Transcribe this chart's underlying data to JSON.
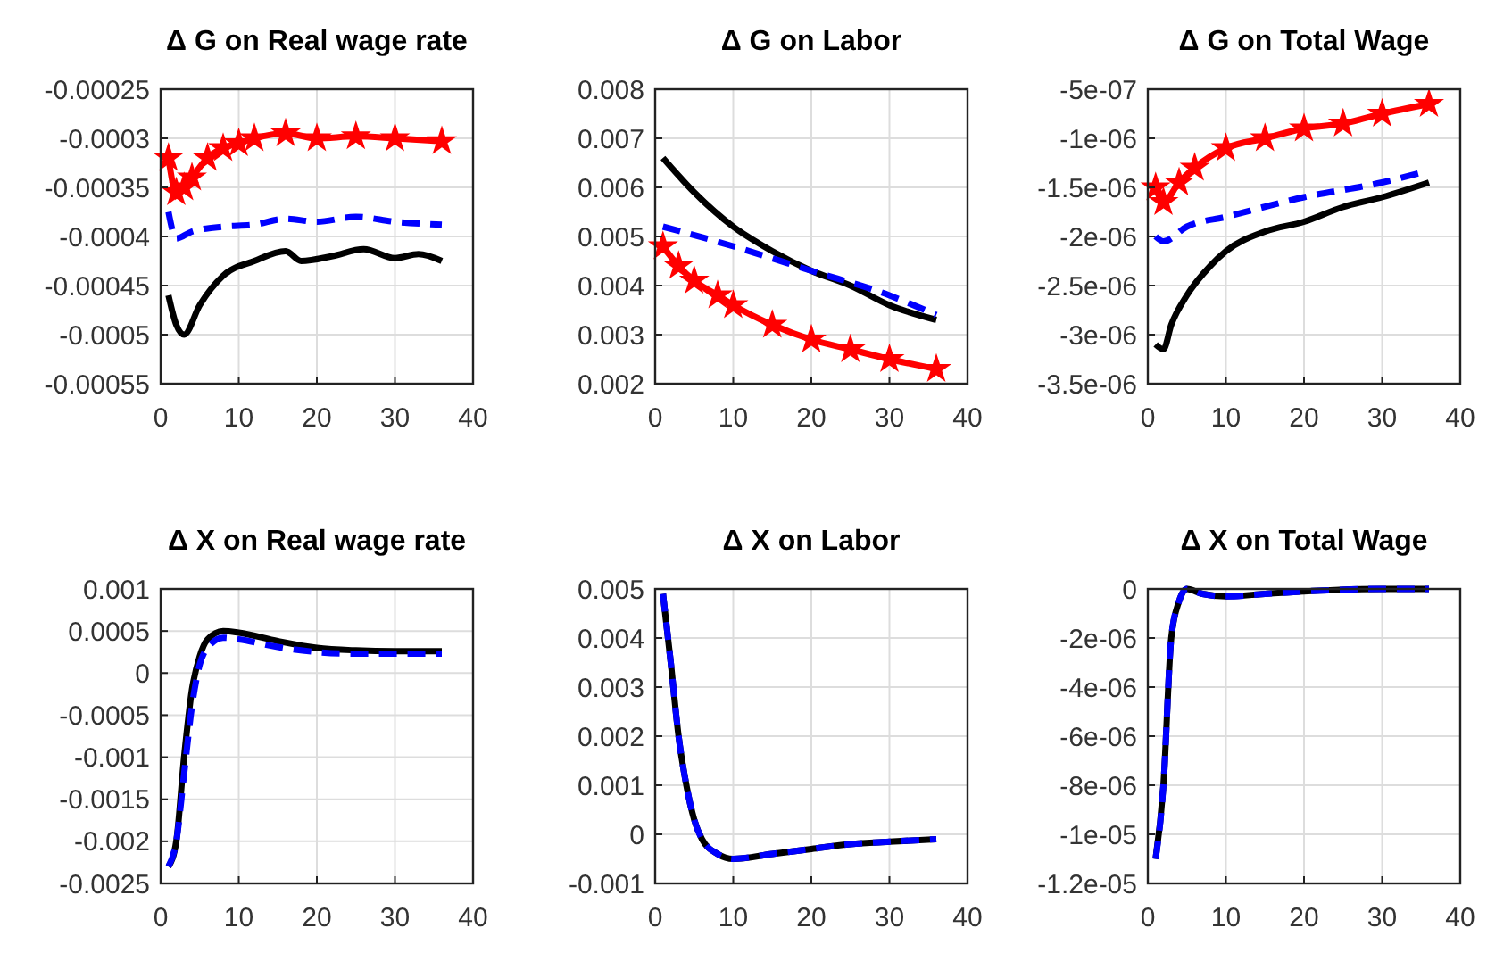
{
  "chart_data": [
    {
      "type": "line",
      "title": "Δ G on Real wage rate",
      "xlim": [
        0,
        40
      ],
      "xticks": [
        0,
        10,
        20,
        30,
        40
      ],
      "ylim": [
        -0.00055,
        -0.00025
      ],
      "yticks": [
        -0.00055,
        -0.0005,
        -0.00045,
        -0.0004,
        -0.00035,
        -0.0003,
        -0.00025
      ],
      "grid": true,
      "series": [
        {
          "color": "#ff0000",
          "marker": "star",
          "line_style": "solid",
          "x": [
            1,
            2,
            3,
            4,
            6,
            8,
            10,
            12,
            16,
            20,
            25,
            30,
            36
          ],
          "values": [
            -0.00032,
            -0.000355,
            -0.00035,
            -0.00034,
            -0.00032,
            -0.00031,
            -0.000305,
            -0.0003,
            -0.000295,
            -0.0003,
            -0.000298,
            -0.0003,
            -0.000303
          ]
        },
        {
          "color": "#0000ff",
          "marker": "none",
          "line_style": "dashed",
          "x": [
            1,
            2,
            4,
            8,
            12,
            16,
            20,
            25,
            30,
            36
          ],
          "values": [
            -0.000375,
            -0.000402,
            -0.000395,
            -0.00039,
            -0.000388,
            -0.000382,
            -0.000385,
            -0.00038,
            -0.000385,
            -0.000388
          ]
        },
        {
          "color": "#000000",
          "marker": "none",
          "line_style": "solid",
          "x": [
            1,
            2,
            3,
            5,
            8,
            12,
            16,
            18,
            22,
            26,
            30,
            33,
            36
          ],
          "values": [
            -0.00046,
            -0.00049,
            -0.0005,
            -0.00047,
            -0.00044,
            -0.000425,
            -0.000415,
            -0.000425,
            -0.00042,
            -0.000413,
            -0.000422,
            -0.000418,
            -0.000425
          ]
        }
      ]
    },
    {
      "type": "line",
      "title": "Δ G on Labor",
      "xlim": [
        0,
        40
      ],
      "xticks": [
        0,
        10,
        20,
        30,
        40
      ],
      "ylim": [
        0.002,
        0.008
      ],
      "yticks": [
        0.002,
        0.003,
        0.004,
        0.005,
        0.006,
        0.007,
        0.008
      ],
      "grid": true,
      "series": [
        {
          "color": "#000000",
          "marker": "none",
          "line_style": "solid",
          "x": [
            1,
            5,
            10,
            15,
            20,
            25,
            30,
            36
          ],
          "values": [
            0.0066,
            0.0059,
            0.0052,
            0.0047,
            0.0043,
            0.004,
            0.0036,
            0.0033
          ]
        },
        {
          "color": "#0000ff",
          "marker": "none",
          "line_style": "dashed",
          "x": [
            1,
            10,
            20,
            30,
            36
          ],
          "values": [
            0.0052,
            0.0048,
            0.0043,
            0.0038,
            0.0034
          ]
        },
        {
          "color": "#ff0000",
          "marker": "star",
          "line_style": "solid",
          "x": [
            1,
            3,
            5,
            8,
            10,
            15,
            20,
            25,
            30,
            36
          ],
          "values": [
            0.0048,
            0.0044,
            0.0041,
            0.0038,
            0.0036,
            0.0032,
            0.0029,
            0.0027,
            0.0025,
            0.0023
          ]
        }
      ]
    },
    {
      "type": "line",
      "title": "Δ G on Total Wage",
      "xlim": [
        0,
        40
      ],
      "xticks": [
        0,
        10,
        20,
        30,
        40
      ],
      "ylim": [
        -3.5e-06,
        -5e-07
      ],
      "yticks": [
        {
          "value": -3.5e-06,
          "label": "-3.5e-06"
        },
        {
          "value": -3e-06,
          "label": "-3e-06"
        },
        {
          "value": -2.5e-06,
          "label": "-2.5e-06"
        },
        {
          "value": -2e-06,
          "label": "-2e-06"
        },
        {
          "value": -1.5e-06,
          "label": "-1.5e-06"
        },
        {
          "value": -1e-06,
          "label": "-1e-06"
        },
        {
          "value": -5e-07,
          "label": "-5e-07"
        }
      ],
      "grid": true,
      "series": [
        {
          "color": "#ff0000",
          "marker": "star",
          "line_style": "solid",
          "x": [
            1,
            2,
            4,
            6,
            10,
            15,
            20,
            25,
            30,
            36
          ],
          "values": [
            -1.5e-06,
            -1.65e-06,
            -1.45e-06,
            -1.3e-06,
            -1.1e-06,
            -1e-06,
            -9e-07,
            -8.5e-07,
            -7.5e-07,
            -6.5e-07
          ]
        },
        {
          "color": "#0000ff",
          "marker": "none",
          "line_style": "dashed",
          "x": [
            1,
            2,
            5,
            10,
            20,
            30,
            35
          ],
          "values": [
            -2e-06,
            -2.05e-06,
            -1.9e-06,
            -1.8e-06,
            -1.6e-06,
            -1.45e-06,
            -1.35e-06
          ]
        },
        {
          "color": "#000000",
          "marker": "none",
          "line_style": "solid",
          "x": [
            1,
            2,
            3,
            5,
            8,
            10,
            15,
            20,
            25,
            30,
            36
          ],
          "values": [
            -3.1e-06,
            -3.15e-06,
            -2.9e-06,
            -2.6e-06,
            -2.3e-06,
            -2.15e-06,
            -1.95e-06,
            -1.85e-06,
            -1.7e-06,
            -1.6e-06,
            -1.45e-06
          ]
        }
      ]
    },
    {
      "type": "line",
      "title": "Δ X on Real wage rate",
      "xlim": [
        0,
        40
      ],
      "xticks": [
        0,
        10,
        20,
        30,
        40
      ],
      "ylim": [
        -0.0025,
        0.001
      ],
      "yticks": [
        -0.0025,
        -0.002,
        -0.0015,
        -0.001,
        -0.0005,
        0,
        0.0005,
        0.001
      ],
      "grid": true,
      "series": [
        {
          "color": "#000000",
          "marker": "none",
          "line_style": "solid",
          "x": [
            1,
            2,
            3,
            4,
            5,
            6,
            8,
            10,
            15,
            20,
            25,
            30,
            36
          ],
          "values": [
            -0.0023,
            -0.002,
            -0.001,
            -0.0002,
            0.0002,
            0.0004,
            0.0005,
            0.00048,
            0.00038,
            0.0003,
            0.00027,
            0.00026,
            0.00026
          ]
        },
        {
          "color": "#0000ff",
          "marker": "none",
          "line_style": "dashed",
          "x": [
            1,
            2,
            3,
            4,
            5,
            6,
            8,
            10,
            15,
            20,
            25,
            30,
            36
          ],
          "values": [
            -0.0023,
            -0.002,
            -0.0012,
            -0.0004,
            0.0001,
            0.0003,
            0.00042,
            0.0004,
            0.00031,
            0.00025,
            0.00023,
            0.00023,
            0.00023
          ]
        }
      ]
    },
    {
      "type": "line",
      "title": "Δ X on Labor",
      "xlim": [
        0,
        40
      ],
      "xticks": [
        0,
        10,
        20,
        30,
        40
      ],
      "ylim": [
        -0.001,
        0.005
      ],
      "yticks": [
        -0.001,
        0,
        0.001,
        0.002,
        0.003,
        0.004,
        0.005
      ],
      "grid": true,
      "series": [
        {
          "color": "#000000",
          "marker": "none",
          "line_style": "solid",
          "x": [
            1,
            2,
            3,
            4,
            5,
            6,
            8,
            10,
            15,
            20,
            25,
            30,
            36
          ],
          "values": [
            0.0049,
            0.0035,
            0.002,
            0.001,
            0.0003,
            -0.0001,
            -0.0004,
            -0.0005,
            -0.0004,
            -0.0003,
            -0.0002,
            -0.00015,
            -0.0001
          ]
        },
        {
          "color": "#0000ff",
          "marker": "none",
          "line_style": "dashed",
          "x": [
            1,
            2,
            3,
            4,
            5,
            6,
            8,
            10,
            15,
            20,
            25,
            30,
            36
          ],
          "values": [
            0.0049,
            0.0035,
            0.002,
            0.001,
            0.0003,
            -0.0001,
            -0.0004,
            -0.0005,
            -0.0004,
            -0.0003,
            -0.0002,
            -0.00015,
            -0.0001
          ]
        }
      ]
    },
    {
      "type": "line",
      "title": "Δ X on Total Wage",
      "xlim": [
        0,
        40
      ],
      "xticks": [
        0,
        10,
        20,
        30,
        40
      ],
      "ylim": [
        -1.2e-05,
        0
      ],
      "yticks": [
        {
          "value": -1.2e-05,
          "label": "-1.2e-05"
        },
        {
          "value": -1e-05,
          "label": "-1e-05"
        },
        {
          "value": -8e-06,
          "label": "-8e-06"
        },
        {
          "value": -6e-06,
          "label": "-6e-06"
        },
        {
          "value": -4e-06,
          "label": "-4e-06"
        },
        {
          "value": -2e-06,
          "label": "-2e-06"
        },
        0
      ],
      "grid": true,
      "series": [
        {
          "color": "#000000",
          "marker": "none",
          "line_style": "solid",
          "x": [
            1,
            2,
            3,
            4,
            5,
            7,
            10,
            15,
            20,
            30,
            36
          ],
          "values": [
            -1.1e-05,
            -8e-06,
            -2e-06,
            -5e-07,
            0,
            -2e-07,
            -3e-07,
            -2e-07,
            -1e-07,
            0,
            0
          ]
        },
        {
          "color": "#0000ff",
          "marker": "none",
          "line_style": "dashed",
          "x": [
            1,
            2,
            3,
            4,
            5,
            7,
            10,
            15,
            20,
            30,
            36
          ],
          "values": [
            -1.1e-05,
            -8e-06,
            -2e-06,
            -5e-07,
            0,
            -2e-07,
            -3e-07,
            -2e-07,
            -1e-07,
            0,
            0
          ]
        }
      ]
    }
  ]
}
